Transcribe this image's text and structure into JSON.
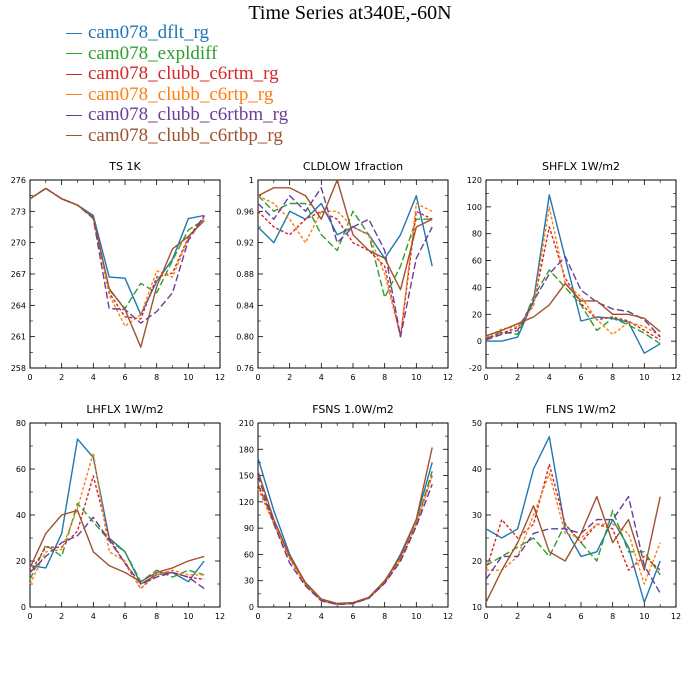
{
  "title": "Time Series at340E,-60N",
  "legend": [
    {
      "name": "cam078_dflt_rg",
      "color": "#1f77b4"
    },
    {
      "name": "cam078_expldiff",
      "color": "#2ca02c"
    },
    {
      "name": "cam078_clubb_c6rtm_rg",
      "color": "#d62728"
    },
    {
      "name": "cam078_clubb_c6rtp_rg",
      "color": "#ff7f0e"
    },
    {
      "name": "cam078_clubb_c6rtbm_rg",
      "color": "#6a3d9a"
    },
    {
      "name": "cam078_clubb_c6rtbp_rg",
      "color": "#a0522d"
    }
  ],
  "chart_data": [
    {
      "type": "line",
      "title": "TS   1K",
      "x": [
        0,
        1,
        2,
        3,
        4,
        5,
        6,
        7,
        8,
        9,
        10,
        11
      ],
      "xlim": [
        0,
        12
      ],
      "xticks": [
        0,
        2,
        4,
        6,
        8,
        10,
        12
      ],
      "ylim": [
        258,
        276
      ],
      "yticks": [
        258,
        261,
        264,
        267,
        270,
        273,
        276
      ],
      "series": [
        {
          "name": "cam078_dflt_rg",
          "values": [
            274.2,
            275.2,
            274.2,
            273.6,
            272.6,
            266.7,
            266.6,
            263.1,
            266.3,
            268.4,
            272.3,
            272.6
          ]
        },
        {
          "name": "cam078_expldiff",
          "values": [
            274.2,
            275.2,
            274.2,
            273.6,
            272.4,
            265.5,
            263.7,
            266.1,
            265.2,
            268.3,
            271.2,
            272.2
          ]
        },
        {
          "name": "cam078_clubb_c6rtm_rg",
          "values": [
            274.2,
            275.2,
            274.2,
            273.6,
            272.4,
            265.2,
            262.9,
            262.7,
            266.7,
            267.1,
            270.5,
            272.5
          ]
        },
        {
          "name": "cam078_clubb_c6rtp_rg",
          "values": [
            274.2,
            275.2,
            274.2,
            273.6,
            272.4,
            265.0,
            262.0,
            263.1,
            267.3,
            266.7,
            270.4,
            272.3
          ]
        },
        {
          "name": "cam078_clubb_c6rtbm_rg",
          "values": [
            274.2,
            275.2,
            274.2,
            273.6,
            272.3,
            263.7,
            263.6,
            262.3,
            263.4,
            265.2,
            270.2,
            272.6
          ]
        },
        {
          "name": "cam078_clubb_c6rtbp_rg",
          "values": [
            274.2,
            275.2,
            274.2,
            273.6,
            272.4,
            265.6,
            263.6,
            260.0,
            265.8,
            269.4,
            270.6,
            272.1
          ]
        }
      ]
    },
    {
      "type": "line",
      "title": "CLDLOW   1fraction",
      "x": [
        0,
        1,
        2,
        3,
        4,
        5,
        6,
        7,
        8,
        9,
        10,
        11
      ],
      "xlim": [
        0,
        12
      ],
      "xticks": [
        0,
        2,
        4,
        6,
        8,
        10,
        12
      ],
      "ylim": [
        0.76,
        1.0
      ],
      "yticks": [
        0.76,
        0.8,
        0.84,
        0.88,
        0.92,
        0.96,
        1.0
      ],
      "series": [
        {
          "name": "cam078_dflt_rg",
          "values": [
            0.94,
            0.92,
            0.96,
            0.95,
            0.97,
            0.93,
            0.94,
            0.93,
            0.9,
            0.93,
            0.98,
            0.89
          ]
        },
        {
          "name": "cam078_expldiff",
          "values": [
            0.98,
            0.96,
            0.97,
            0.97,
            0.93,
            0.91,
            0.96,
            0.93,
            0.85,
            0.89,
            0.95,
            0.95
          ]
        },
        {
          "name": "cam078_clubb_c6rtm_rg",
          "values": [
            0.96,
            0.94,
            0.93,
            0.95,
            0.96,
            0.95,
            0.92,
            0.91,
            0.89,
            0.8,
            0.96,
            0.95
          ]
        },
        {
          "name": "cam078_clubb_c6rtp_rg",
          "values": [
            0.98,
            0.97,
            0.95,
            0.92,
            0.96,
            0.96,
            0.94,
            0.93,
            0.88,
            0.8,
            0.97,
            0.96
          ]
        },
        {
          "name": "cam078_clubb_c6rtbm_rg",
          "values": [
            0.97,
            0.95,
            0.98,
            0.96,
            0.99,
            0.92,
            0.94,
            0.95,
            0.91,
            0.8,
            0.9,
            0.94
          ]
        },
        {
          "name": "cam078_clubb_c6rtbp_rg",
          "values": [
            0.98,
            0.99,
            0.99,
            0.98,
            0.95,
            1.0,
            0.93,
            0.91,
            0.9,
            0.86,
            0.94,
            0.95
          ]
        }
      ]
    },
    {
      "type": "line",
      "title": "SHFLX   1W/m2",
      "x": [
        0,
        1,
        2,
        3,
        4,
        5,
        6,
        7,
        8,
        9,
        10,
        11
      ],
      "xlim": [
        0,
        12
      ],
      "xticks": [
        0,
        2,
        4,
        6,
        8,
        10,
        12
      ],
      "ylim": [
        -20,
        120
      ],
      "yticks": [
        -20,
        0,
        20,
        40,
        60,
        80,
        100,
        120
      ],
      "series": [
        {
          "name": "cam078_dflt_rg",
          "values": [
            0,
            0,
            3,
            30,
            109,
            62,
            15,
            18,
            17,
            14,
            -9,
            -2
          ]
        },
        {
          "name": "cam078_expldiff",
          "values": [
            2,
            7,
            5,
            33,
            53,
            40,
            27,
            8,
            17,
            12,
            6,
            -2
          ]
        },
        {
          "name": "cam078_clubb_c6rtm_rg",
          "values": [
            2,
            6,
            10,
            27,
            85,
            47,
            28,
            16,
            18,
            15,
            8,
            1
          ]
        },
        {
          "name": "cam078_clubb_c6rtp_rg",
          "values": [
            3,
            9,
            11,
            26,
            100,
            43,
            33,
            16,
            5,
            14,
            11,
            4
          ]
        },
        {
          "name": "cam078_clubb_c6rtbm_rg",
          "values": [
            1,
            5,
            8,
            30,
            50,
            63,
            38,
            29,
            24,
            22,
            16,
            3
          ]
        },
        {
          "name": "cam078_clubb_c6rtbp_rg",
          "values": [
            4,
            8,
            13,
            18,
            27,
            43,
            30,
            30,
            20,
            20,
            17,
            7
          ]
        }
      ]
    },
    {
      "type": "line",
      "title": "LHFLX   1W/m2",
      "x": [
        0,
        1,
        2,
        3,
        4,
        5,
        6,
        7,
        8,
        9,
        10,
        11
      ],
      "xlim": [
        0,
        12
      ],
      "xticks": [
        0,
        2,
        4,
        6,
        8,
        10,
        12
      ],
      "ylim": [
        0,
        80
      ],
      "yticks": [
        0,
        20,
        40,
        60,
        80
      ],
      "series": [
        {
          "name": "cam078_dflt_rg",
          "values": [
            18,
            17,
            32,
            73,
            65,
            30,
            24,
            10,
            14,
            15,
            11,
            20
          ]
        },
        {
          "name": "cam078_expldiff",
          "values": [
            12,
            27,
            22,
            45,
            37,
            29,
            24,
            11,
            16,
            13,
            16,
            14
          ]
        },
        {
          "name": "cam078_clubb_c6rtm_rg",
          "values": [
            15,
            26,
            26,
            33,
            57,
            30,
            19,
            8,
            15,
            15,
            13,
            12
          ]
        },
        {
          "name": "cam078_clubb_c6rtp_rg",
          "values": [
            10,
            24,
            25,
            43,
            67,
            24,
            20,
            8,
            14,
            16,
            14,
            14
          ]
        },
        {
          "name": "cam078_clubb_c6rtbm_rg",
          "values": [
            15,
            22,
            28,
            31,
            39,
            29,
            19,
            10,
            13,
            15,
            13,
            8
          ]
        },
        {
          "name": "cam078_clubb_c6rtbp_rg",
          "values": [
            17,
            32,
            40,
            42,
            24,
            18,
            15,
            11,
            15,
            17,
            20,
            22
          ]
        }
      ]
    },
    {
      "type": "line",
      "title": "FSNS   1.0W/m2",
      "x": [
        0,
        1,
        2,
        3,
        4,
        5,
        6,
        7,
        8,
        9,
        10,
        11
      ],
      "xlim": [
        0,
        12
      ],
      "xticks": [
        0,
        2,
        4,
        6,
        8,
        10,
        12
      ],
      "ylim": [
        0,
        210
      ],
      "yticks": [
        0,
        30,
        60,
        90,
        120,
        150,
        180,
        210
      ],
      "series": [
        {
          "name": "cam078_dflt_rg",
          "values": [
            170,
            110,
            60,
            27,
            8,
            3,
            4,
            10,
            28,
            60,
            100,
            165
          ]
        },
        {
          "name": "cam078_expldiff",
          "values": [
            140,
            98,
            58,
            26,
            8,
            3,
            4,
            11,
            28,
            55,
            95,
            155
          ]
        },
        {
          "name": "cam078_clubb_c6rtm_rg",
          "values": [
            140,
            96,
            55,
            25,
            7,
            3,
            4,
            10,
            27,
            55,
            95,
            150
          ]
        },
        {
          "name": "cam078_clubb_c6rtp_rg",
          "values": [
            135,
            95,
            55,
            25,
            7,
            3,
            4,
            10,
            27,
            54,
            94,
            150
          ]
        },
        {
          "name": "cam078_clubb_c6rtbm_rg",
          "values": [
            150,
            95,
            50,
            24,
            7,
            3,
            4,
            10,
            27,
            52,
            92,
            140
          ]
        },
        {
          "name": "cam078_clubb_c6rtbp_rg",
          "values": [
            155,
            100,
            58,
            28,
            9,
            4,
            5,
            11,
            30,
            58,
            100,
            182
          ]
        }
      ]
    },
    {
      "type": "line",
      "title": "FLNS   1W/m2",
      "x": [
        0,
        1,
        2,
        3,
        4,
        5,
        6,
        7,
        8,
        9,
        10,
        11
      ],
      "xlim": [
        0,
        12
      ],
      "xticks": [
        0,
        2,
        4,
        6,
        8,
        10,
        12
      ],
      "ylim": [
        10,
        50
      ],
      "yticks": [
        10,
        20,
        30,
        40,
        50
      ],
      "series": [
        {
          "name": "cam078_dflt_rg",
          "values": [
            27,
            25,
            27,
            40,
            47,
            27,
            21,
            22,
            29,
            23,
            11,
            20
          ]
        },
        {
          "name": "cam078_expldiff",
          "values": [
            19,
            21,
            23,
            25,
            21,
            28,
            24,
            20,
            31,
            22,
            22,
            17
          ]
        },
        {
          "name": "cam078_clubb_c6rtm_rg",
          "values": [
            18,
            29,
            25,
            28,
            41,
            28,
            24,
            28,
            27,
            18,
            21,
            18
          ]
        },
        {
          "name": "cam078_clubb_c6rtp_rg",
          "values": [
            18,
            18,
            21,
            30,
            39,
            26,
            25,
            28,
            28,
            26,
            15,
            24
          ]
        },
        {
          "name": "cam078_clubb_c6rtbm_rg",
          "values": [
            16,
            21,
            21,
            26,
            27,
            27,
            26,
            29,
            29,
            34,
            19,
            13
          ]
        },
        {
          "name": "cam078_clubb_c6rtbp_rg",
          "values": [
            11,
            18,
            24,
            32,
            22,
            20,
            26,
            34,
            24,
            29,
            18,
            34
          ]
        }
      ]
    }
  ]
}
